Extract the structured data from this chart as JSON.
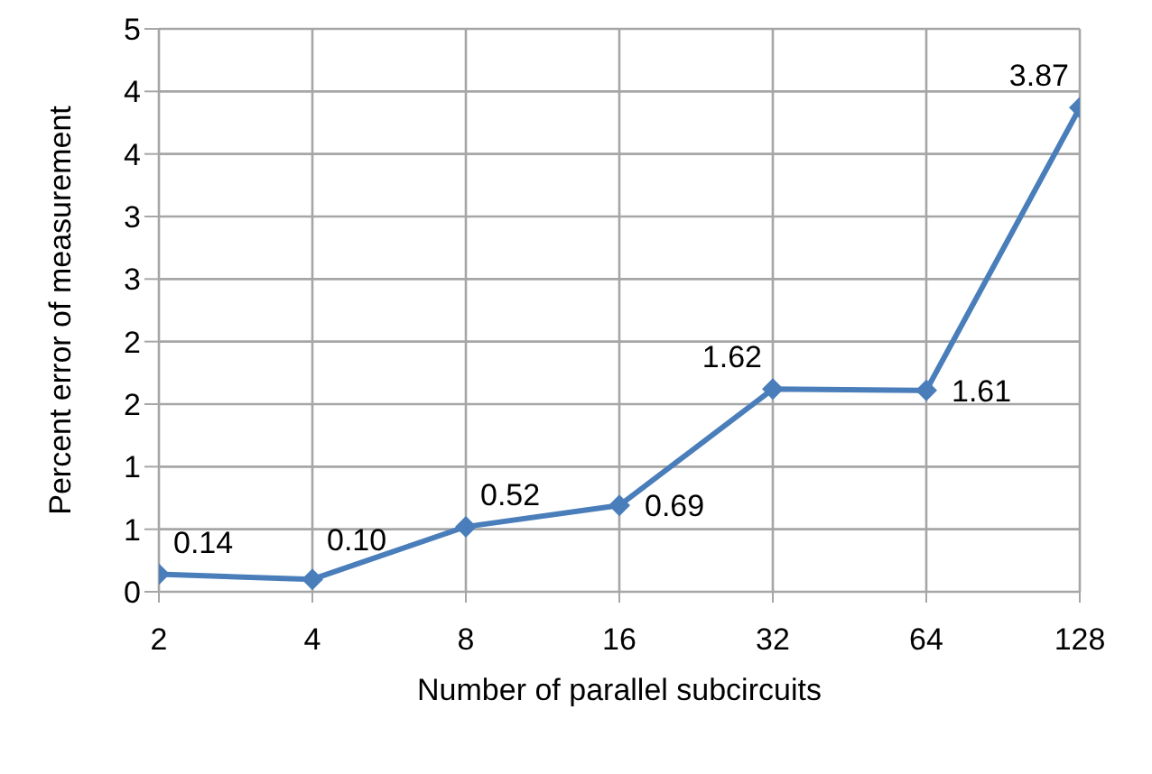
{
  "chart_data": {
    "type": "line",
    "xlabel": "Number of parallel  subcircuits",
    "ylabel": "Percent error of measurement",
    "categories": [
      "2",
      "4",
      "8",
      "16",
      "32",
      "64",
      "128"
    ],
    "series": [
      {
        "color": "#4a7ebb",
        "values": [
          0.14,
          0.1,
          0.52,
          0.69,
          1.62,
          1.61,
          3.87
        ],
        "value_labels": [
          "0.14",
          "0.10",
          "0.52",
          "0.69",
          "1.62",
          "1.61",
          "3.87"
        ]
      }
    ],
    "ylim": [
      0,
      4.5
    ],
    "yticks": [
      0,
      {
        "value": 0.5,
        "label": "1"
      },
      1,
      {
        "value": 1.5,
        "label": "2"
      },
      2,
      {
        "value": 2.5,
        "label": "3"
      },
      3,
      {
        "value": 3.5,
        "label": "4"
      },
      4,
      {
        "value": 4.5,
        "label": "5"
      }
    ],
    "grid": true,
    "marker": "diamond",
    "line_style": "solid"
  }
}
